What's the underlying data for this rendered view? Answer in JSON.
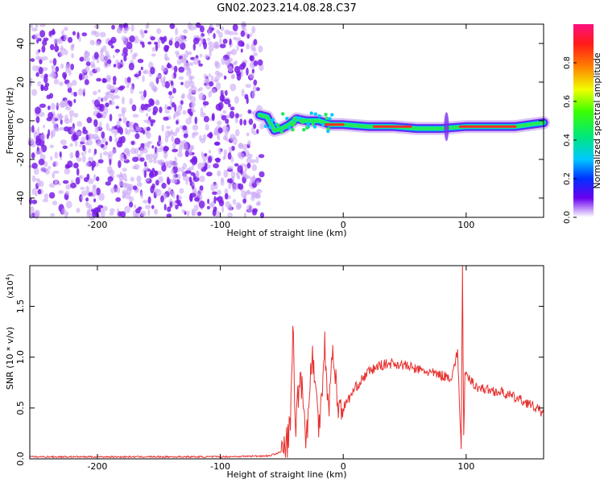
{
  "title": "GN02.2023.214.08.28.C37",
  "colors": {
    "snr_line": "#e8302e",
    "speck_dark": "#7a1ee8",
    "speck_light": "#c9a6f5",
    "axis": "#000000"
  },
  "chart_data": [
    {
      "type": "heatmap",
      "title": "GN02.2023.214.08.28.C37",
      "xlabel": "Height of straight line (km)",
      "ylabel": "Frequency (Hz)",
      "xlim": [
        -255,
        163
      ],
      "ylim": [
        -50,
        50
      ],
      "x_ticks": [
        -200,
        -100,
        0,
        100
      ],
      "y_ticks": [
        -40,
        -20,
        0,
        20,
        40
      ],
      "noise_region": [
        -255,
        -66
      ],
      "ridge": [
        {
          "x": -68,
          "y": 3
        },
        {
          "x": -62,
          "y": 2
        },
        {
          "x": -56,
          "y": -5
        },
        {
          "x": -50,
          "y": -4
        },
        {
          "x": -44,
          "y": -2
        },
        {
          "x": -38,
          "y": 1
        },
        {
          "x": -30,
          "y": 0
        },
        {
          "x": -20,
          "y": 0
        },
        {
          "x": -10,
          "y": -2
        },
        {
          "x": 0,
          "y": -2
        },
        {
          "x": 20,
          "y": -3
        },
        {
          "x": 40,
          "y": -3
        },
        {
          "x": 60,
          "y": -4
        },
        {
          "x": 80,
          "y": -4
        },
        {
          "x": 100,
          "y": -3
        },
        {
          "x": 120,
          "y": -3
        },
        {
          "x": 140,
          "y": -3
        },
        {
          "x": 163,
          "y": -1
        }
      ],
      "colorbar": {
        "label": "Normalized spectral amplitude",
        "ticks": [
          0.0,
          0.2,
          0.4,
          0.6,
          0.8
        ],
        "tick_labels": [
          "0.0",
          "0.2",
          "0.4",
          "0.6",
          "0.8"
        ],
        "range": [
          0,
          1
        ]
      }
    },
    {
      "type": "line",
      "xlabel": "Height of straight line (km)",
      "ylabel": "SNR (10 * v/v)",
      "y_multiplier": "(x10",
      "y_multiplier_exp": "4",
      "y_multiplier_close": ")",
      "xlim": [
        -255,
        163
      ],
      "ylim": [
        0,
        1.9
      ],
      "x_ticks": [
        -200,
        -100,
        0,
        100
      ],
      "y_ticks": [
        0.0,
        0.5,
        1.0,
        1.5
      ],
      "y_tick_labels": [
        "0.0",
        "0.5",
        "1.0",
        "1.5"
      ],
      "series": [
        {
          "values": [
            [
              -255,
              0.02
            ],
            [
              -200,
              0.02
            ],
            [
              -150,
              0.02
            ],
            [
              -100,
              0.02
            ],
            [
              -60,
              0.03
            ],
            [
              -48,
              0.08
            ],
            [
              -43,
              0.3
            ],
            [
              -41,
              1.35
            ],
            [
              -39,
              0.3
            ],
            [
              -35,
              0.9
            ],
            [
              -30,
              0.2
            ],
            [
              -25,
              1.05
            ],
            [
              -20,
              0.3
            ],
            [
              -15,
              1.12
            ],
            [
              -12,
              0.5
            ],
            [
              -8,
              1.1
            ],
            [
              -5,
              0.55
            ],
            [
              0,
              0.5
            ],
            [
              10,
              0.7
            ],
            [
              20,
              0.85
            ],
            [
              30,
              0.92
            ],
            [
              40,
              0.94
            ],
            [
              50,
              0.92
            ],
            [
              60,
              0.88
            ],
            [
              70,
              0.85
            ],
            [
              80,
              0.82
            ],
            [
              88,
              0.8
            ],
            [
              93,
              1.05
            ],
            [
              96,
              0.1
            ],
            [
              97,
              1.95
            ],
            [
              98,
              0.2
            ],
            [
              99,
              0.82
            ],
            [
              110,
              0.7
            ],
            [
              130,
              0.65
            ],
            [
              150,
              0.55
            ],
            [
              163,
              0.45
            ]
          ]
        }
      ]
    }
  ]
}
